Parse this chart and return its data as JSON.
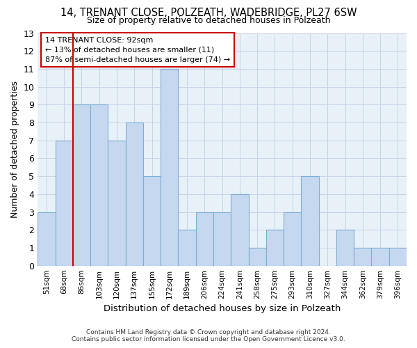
{
  "title1": "14, TRENANT CLOSE, POLZEATH, WADEBRIDGE, PL27 6SW",
  "title2": "Size of property relative to detached houses in Polzeath",
  "xlabel": "Distribution of detached houses by size in Polzeath",
  "ylabel": "Number of detached properties",
  "footer1": "Contains HM Land Registry data © Crown copyright and database right 2024.",
  "footer2": "Contains public sector information licensed under the Open Government Licence v3.0.",
  "categories": [
    "51sqm",
    "68sqm",
    "86sqm",
    "103sqm",
    "120sqm",
    "137sqm",
    "155sqm",
    "172sqm",
    "189sqm",
    "206sqm",
    "224sqm",
    "241sqm",
    "258sqm",
    "275sqm",
    "293sqm",
    "310sqm",
    "327sqm",
    "344sqm",
    "362sqm",
    "379sqm",
    "396sqm"
  ],
  "values": [
    3,
    7,
    9,
    9,
    7,
    8,
    5,
    11,
    2,
    3,
    3,
    4,
    1,
    2,
    3,
    5,
    0,
    2,
    1,
    1,
    1
  ],
  "bar_color": "#c5d8f0",
  "bar_edge_color": "#7bafd4",
  "highlight_color": "#cc0000",
  "highlight_index": 2,
  "annotation_line1": "14 TRENANT CLOSE: 92sqm",
  "annotation_line2": "← 13% of detached houses are smaller (11)",
  "annotation_line3": "87% of semi-detached houses are larger (74) →",
  "ylim": [
    0,
    13
  ],
  "yticks": [
    0,
    1,
    2,
    3,
    4,
    5,
    6,
    7,
    8,
    9,
    10,
    11,
    12,
    13
  ],
  "axes_bg_color": "#e8f0f8",
  "background_color": "#ffffff",
  "grid_color": "#c8d4e8",
  "annotation_box_color": "#ffffff",
  "annotation_box_edge": "#cc0000"
}
